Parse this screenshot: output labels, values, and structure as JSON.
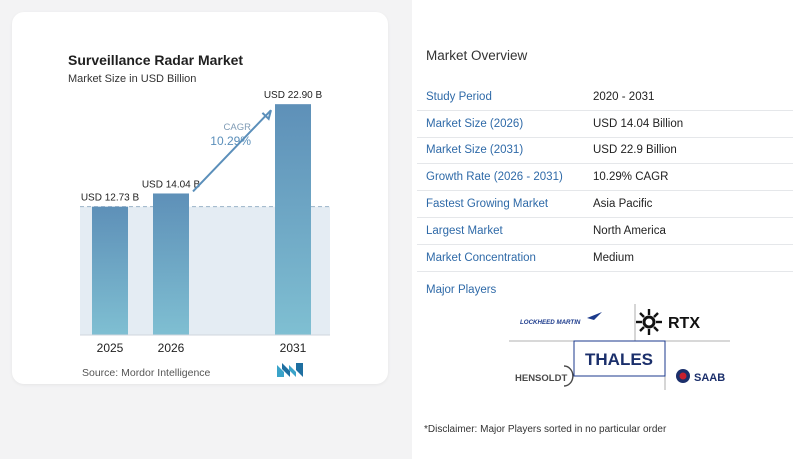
{
  "chart": {
    "title": "Surveillance Radar Market",
    "subtitle": "Market Size in USD Billion",
    "source": "Source:  Mordor Intelligence",
    "cagr_label": "CAGR",
    "cagr_value": "10.29%"
  },
  "chart_data": {
    "type": "bar",
    "categories": [
      "2025",
      "2026",
      "2031"
    ],
    "values": [
      12.73,
      14.04,
      22.9
    ],
    "data_labels": [
      "USD 12.73 B",
      "USD 14.04 B",
      "USD 22.90 B"
    ],
    "ylim": [
      0,
      25
    ],
    "grid": false,
    "reference_line": 12.73,
    "colors": {
      "bar_top": "#5e90b8",
      "bar_bottom": "#7fbfd2",
      "shade": "#e4ecf3",
      "arrow": "#5b8fba"
    }
  },
  "overview": {
    "title": "Market Overview",
    "rows": [
      {
        "key": "Study Period",
        "value": "2020 - 2031"
      },
      {
        "key": "Market Size (2026)",
        "value": "USD 14.04 Billion"
      },
      {
        "key": "Market Size (2031)",
        "value": "USD 22.9 Billion"
      },
      {
        "key": "Growth Rate (2026 - 2031)",
        "value": "10.29% CAGR"
      },
      {
        "key": "Fastest Growing Market",
        "value": "Asia Pacific"
      },
      {
        "key": "Largest Market",
        "value": "North America"
      },
      {
        "key": "Market Concentration",
        "value": "Medium"
      }
    ],
    "players_title": "Major Players",
    "players": {
      "lockheed": "LOCKHEED MARTIN",
      "rtx": "RTX",
      "thales": "THALES",
      "hensoldt": "HENSOLDT",
      "saab": "SAAB"
    },
    "disclaimer": "*Disclaimer: Major Players sorted in no particular order"
  }
}
